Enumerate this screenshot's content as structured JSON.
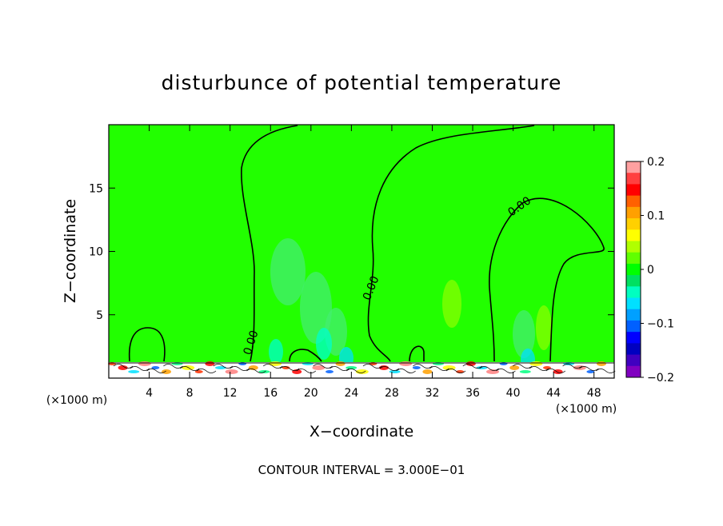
{
  "chart_data": {
    "type": "heatmap",
    "title": "disturbunce of potential temperature",
    "xlabel": "X−coordinate",
    "ylabel": "Z−coordinate",
    "x_unit": "(×1000 m)",
    "x_unit_right": "(×1000 m)",
    "xlim": [
      0,
      50
    ],
    "ylim": [
      0,
      20
    ],
    "x_ticks": [
      4,
      8,
      12,
      16,
      20,
      24,
      28,
      32,
      36,
      40,
      44,
      48
    ],
    "y_ticks": [
      5,
      10,
      15
    ],
    "contour_label": "0.00",
    "footer": "CONTOUR INTERVAL = 3.000E−01",
    "colorbar": {
      "range": [
        -0.2,
        0.2
      ],
      "ticks": [
        "0.2",
        "0.1",
        "0",
        "−0.1",
        "−0.2"
      ],
      "colors": [
        "#ffa0a0",
        "#ff4040",
        "#ff0000",
        "#ff6000",
        "#ffa000",
        "#ffd000",
        "#ffff00",
        "#b0ff00",
        "#60ff00",
        "#00ff00",
        "#00e060",
        "#00ffc0",
        "#00e0ff",
        "#00a0ff",
        "#0060ff",
        "#0000ff",
        "#0000c0",
        "#4000c0",
        "#8000c0"
      ]
    },
    "background_color": "#22ff00"
  }
}
